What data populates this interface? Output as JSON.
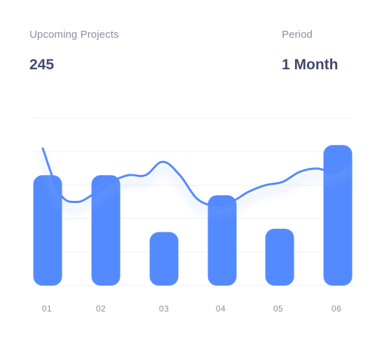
{
  "header": {
    "stat_label": "Upcoming Projects",
    "stat_value": "245",
    "period_label": "Period",
    "period_value": "1 Month"
  },
  "colors": {
    "bar": "#548aff",
    "line": "#548aff",
    "grid": "#eef0f5",
    "text_muted": "#8a8fa3",
    "text_strong": "#42496b"
  },
  "chart_data": {
    "type": "bar",
    "categories": [
      "01",
      "02",
      "03",
      "04",
      "05",
      "06"
    ],
    "series": [
      {
        "values": [
          66,
          66,
          32,
          54,
          34,
          84
        ]
      }
    ],
    "line_series": {
      "type": "line",
      "values": [
        82,
        55,
        50,
        55,
        62,
        66,
        66,
        74,
        66,
        52,
        48,
        50,
        56,
        60,
        62,
        68,
        70,
        68,
        74
      ]
    },
    "ylim": [
      0,
      100
    ],
    "grid": true,
    "xlabel": "",
    "ylabel": ""
  }
}
